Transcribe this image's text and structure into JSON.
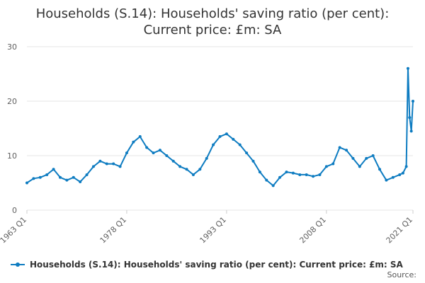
{
  "title": {
    "line1": "Households (S.14): Households' saving ratio (per cent):",
    "line2": "Current price: £m: SA"
  },
  "source_label": "Source:",
  "colors": {
    "series": "#0e7cc1",
    "grid": "#e6e6e6",
    "axis_text": "#606060"
  },
  "chart_data": {
    "type": "line",
    "title": "Households (S.14): Households' saving ratio (per cent): Current price: £m: SA",
    "xlabel": "",
    "ylabel": "",
    "x_range": [
      "1963 Q1",
      "2021 Q1"
    ],
    "x_ticks": [
      "1963 Q1",
      "1978 Q1",
      "1993 Q1",
      "2008 Q1",
      "2021 Q1"
    ],
    "y_ticks": [
      0,
      10,
      20,
      30
    ],
    "ylim": [
      0,
      30
    ],
    "grid": true,
    "legend_position": "bottom",
    "series": [
      {
        "name": "Households (S.14): Households' saving ratio (per cent): Current price: £m: SA",
        "x": [
          "1963 Q1",
          "1964 Q1",
          "1965 Q1",
          "1966 Q1",
          "1967 Q1",
          "1968 Q1",
          "1969 Q1",
          "1970 Q1",
          "1971 Q1",
          "1972 Q1",
          "1973 Q1",
          "1974 Q1",
          "1975 Q1",
          "1976 Q1",
          "1977 Q1",
          "1978 Q1",
          "1979 Q1",
          "1980 Q1",
          "1981 Q1",
          "1982 Q1",
          "1983 Q1",
          "1984 Q1",
          "1985 Q1",
          "1986 Q1",
          "1987 Q1",
          "1988 Q1",
          "1989 Q1",
          "1990 Q1",
          "1991 Q1",
          "1992 Q1",
          "1993 Q1",
          "1994 Q1",
          "1995 Q1",
          "1996 Q1",
          "1997 Q1",
          "1998 Q1",
          "1999 Q1",
          "2000 Q1",
          "2001 Q1",
          "2002 Q1",
          "2003 Q1",
          "2004 Q1",
          "2005 Q1",
          "2006 Q1",
          "2007 Q1",
          "2008 Q1",
          "2009 Q1",
          "2010 Q1",
          "2011 Q1",
          "2012 Q1",
          "2013 Q1",
          "2014 Q1",
          "2015 Q1",
          "2016 Q1",
          "2017 Q1",
          "2018 Q1",
          "2019 Q1",
          "2019 Q3",
          "2020 Q1",
          "2020 Q2",
          "2020 Q3",
          "2020 Q4",
          "2021 Q1"
        ],
        "values": [
          5,
          5.8,
          6,
          6.5,
          7.5,
          6,
          5.5,
          6,
          5.2,
          6.5,
          8,
          9,
          8.5,
          8.5,
          8,
          10.5,
          12.5,
          13.5,
          11.5,
          10.5,
          11,
          10,
          9,
          8,
          7.5,
          6.5,
          7.5,
          9.5,
          12,
          13.5,
          14,
          13,
          12,
          10.5,
          9,
          7,
          5.5,
          4.5,
          6,
          7,
          6.8,
          6.5,
          6.5,
          6.2,
          6.5,
          8,
          8.5,
          11.5,
          11,
          9.5,
          8,
          9.5,
          10,
          7.5,
          5.5,
          6,
          6.5,
          6.8,
          8,
          26,
          17,
          14.5,
          20
        ]
      }
    ]
  }
}
